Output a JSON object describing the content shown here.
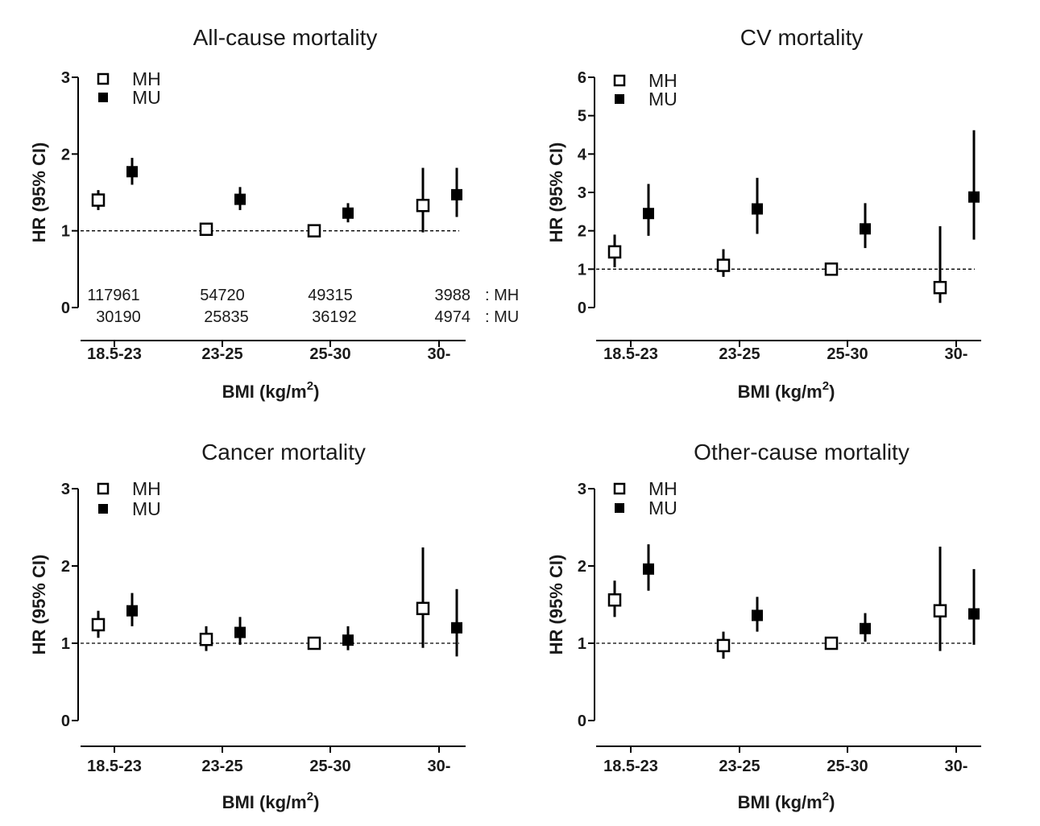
{
  "figure": {
    "shared_xlabel": "BMI (kg/m",
    "shared_xlabel_sup": "2",
    "shared_xlabel_close": ")"
  },
  "chart_data": [
    {
      "type": "scatter",
      "title": "All-cause mortality",
      "xlabel": "BMI (kg/m²)",
      "ylabel": "HR (95% CI)",
      "categories": [
        "18.5-23",
        "23-25",
        "25-30",
        "30-"
      ],
      "ylim": [
        0,
        3
      ],
      "yticks": [
        "0",
        "1",
        "2",
        "3"
      ],
      "reference_line": 1,
      "legend_position": "top-left",
      "series": [
        {
          "name": "MH",
          "marker": "open-square",
          "values": [
            1.4,
            1.02,
            1.0,
            1.33
          ],
          "ci_low": [
            1.27,
            0.95,
            1.0,
            0.98
          ],
          "ci_high": [
            1.53,
            1.1,
            1.0,
            1.82
          ]
        },
        {
          "name": "MU",
          "marker": "filled-square",
          "values": [
            1.77,
            1.41,
            1.23,
            1.47
          ],
          "ci_low": [
            1.6,
            1.27,
            1.11,
            1.18
          ],
          "ci_high": [
            1.95,
            1.57,
            1.36,
            1.82
          ]
        }
      ],
      "counts": {
        "rows": [
          {
            "label": ": MH",
            "values": [
              "117961",
              "54720",
              "49315",
              "3988"
            ]
          },
          {
            "label": ": MU",
            "values": [
              "30190",
              "25835",
              "36192",
              "4974"
            ]
          }
        ]
      }
    },
    {
      "type": "scatter",
      "title": "CV mortality",
      "xlabel": "BMI (kg/m²)",
      "ylabel": "HR (95% CI)",
      "categories": [
        "18.5-23",
        "23-25",
        "25-30",
        "30-"
      ],
      "ylim": [
        0,
        6
      ],
      "yticks": [
        "0",
        "1",
        "2",
        "3",
        "4",
        "5",
        "6"
      ],
      "reference_line": 1,
      "legend_position": "top-left",
      "series": [
        {
          "name": "MH",
          "marker": "open-square",
          "values": [
            1.45,
            1.1,
            1.0,
            0.52
          ],
          "ci_low": [
            1.05,
            0.8,
            1.0,
            0.12
          ],
          "ci_high": [
            1.9,
            1.52,
            1.0,
            2.12
          ]
        },
        {
          "name": "MU",
          "marker": "filled-square",
          "values": [
            2.45,
            2.57,
            2.05,
            2.88
          ],
          "ci_low": [
            1.87,
            1.92,
            1.55,
            1.77
          ],
          "ci_high": [
            3.22,
            3.38,
            2.72,
            4.62
          ]
        }
      ]
    },
    {
      "type": "scatter",
      "title": "Cancer mortality",
      "xlabel": "BMI (kg/m²)",
      "ylabel": "HR (95% CI)",
      "categories": [
        "18.5-23",
        "23-25",
        "25-30",
        "30-"
      ],
      "ylim": [
        0,
        3
      ],
      "yticks": [
        "0",
        "1",
        "2",
        "3"
      ],
      "reference_line": 1,
      "legend_position": "top-left",
      "series": [
        {
          "name": "MH",
          "marker": "open-square",
          "values": [
            1.24,
            1.05,
            1.0,
            1.45
          ],
          "ci_low": [
            1.07,
            0.9,
            1.0,
            0.94
          ],
          "ci_high": [
            1.42,
            1.22,
            1.0,
            2.24
          ]
        },
        {
          "name": "MU",
          "marker": "filled-square",
          "values": [
            1.42,
            1.14,
            1.04,
            1.2
          ],
          "ci_low": [
            1.22,
            0.98,
            0.91,
            0.83
          ],
          "ci_high": [
            1.65,
            1.34,
            1.22,
            1.7
          ]
        }
      ]
    },
    {
      "type": "scatter",
      "title": "Other-cause mortality",
      "xlabel": "BMI (kg/m²)",
      "ylabel": "HR (95% CI)",
      "categories": [
        "18.5-23",
        "23-25",
        "25-30",
        "30-"
      ],
      "ylim": [
        0,
        3
      ],
      "yticks": [
        "0",
        "1",
        "2",
        "3"
      ],
      "reference_line": 1,
      "legend_position": "top-left",
      "series": [
        {
          "name": "MH",
          "marker": "open-square",
          "values": [
            1.56,
            0.97,
            1.0,
            1.42
          ],
          "ci_low": [
            1.34,
            0.8,
            1.0,
            0.9
          ],
          "ci_high": [
            1.81,
            1.15,
            1.0,
            2.25
          ]
        },
        {
          "name": "MU",
          "marker": "filled-square",
          "values": [
            1.96,
            1.36,
            1.19,
            1.38
          ],
          "ci_low": [
            1.68,
            1.15,
            1.02,
            0.98
          ],
          "ci_high": [
            2.28,
            1.6,
            1.39,
            1.96
          ]
        }
      ]
    }
  ]
}
